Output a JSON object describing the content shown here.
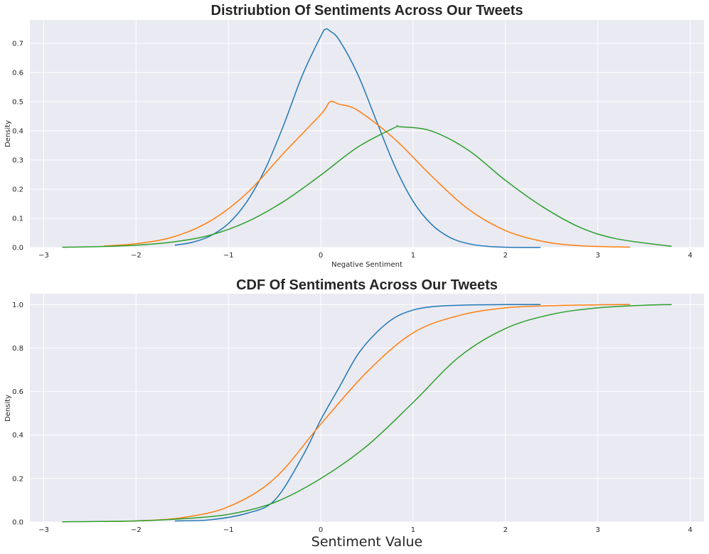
{
  "chart_data": [
    {
      "type": "line",
      "title": "Distriubtion Of Sentiments Across Our Tweets",
      "xlabel": "Negative Sentiment",
      "ylabel": "Density",
      "xlim": [
        -3.15,
        4.15
      ],
      "ylim": [
        0,
        0.78
      ],
      "xticks": [
        -3,
        -2,
        -1,
        0,
        1,
        2,
        3,
        4
      ],
      "xtick_labels": [
        "−3",
        "−2",
        "−1",
        "0",
        "1",
        "2",
        "3",
        "4"
      ],
      "yticks": [
        0.0,
        0.1,
        0.2,
        0.3,
        0.4,
        0.5,
        0.6,
        0.7
      ],
      "ytick_labels": [
        "0.0",
        "0.1",
        "0.2",
        "0.3",
        "0.4",
        "0.5",
        "0.6",
        "0.7"
      ],
      "grid": true,
      "background": "#eaeaf2",
      "series": [
        {
          "color": "#1f77b4",
          "x": [
            -1.58,
            -1.4,
            -1.2,
            -1.0,
            -0.8,
            -0.6,
            -0.4,
            -0.2,
            0.0,
            0.05,
            0.1,
            0.2,
            0.4,
            0.6,
            0.8,
            1.0,
            1.2,
            1.4,
            1.6,
            1.8,
            2.0,
            2.2,
            2.38
          ],
          "y": [
            0.008,
            0.017,
            0.039,
            0.082,
            0.157,
            0.27,
            0.421,
            0.59,
            0.724,
            0.748,
            0.742,
            0.711,
            0.594,
            0.436,
            0.28,
            0.158,
            0.079,
            0.034,
            0.013,
            0.004,
            0.001,
            0.0,
            0.0
          ]
        },
        {
          "color": "#ff7f0e",
          "x": [
            -2.35,
            -2.0,
            -1.6,
            -1.2,
            -0.8,
            -0.4,
            0.0,
            0.1,
            0.2,
            0.4,
            0.8,
            1.2,
            1.6,
            2.0,
            2.4,
            2.8,
            3.35
          ],
          "y": [
            0.005,
            0.013,
            0.036,
            0.09,
            0.186,
            0.324,
            0.456,
            0.499,
            0.491,
            0.47,
            0.372,
            0.245,
            0.131,
            0.058,
            0.021,
            0.006,
            0.001
          ]
        },
        {
          "color": "#2ca02c",
          "x": [
            -2.8,
            -2.4,
            -2.0,
            -1.6,
            -1.2,
            -0.8,
            -0.4,
            0.0,
            0.4,
            0.8,
            0.85,
            1.2,
            1.6,
            2.0,
            2.4,
            2.8,
            3.2,
            3.8
          ],
          "y": [
            0.001,
            0.003,
            0.008,
            0.019,
            0.042,
            0.088,
            0.158,
            0.248,
            0.344,
            0.411,
            0.414,
            0.399,
            0.333,
            0.23,
            0.14,
            0.07,
            0.03,
            0.004
          ]
        }
      ]
    },
    {
      "type": "line",
      "title": "CDF Of Sentiments Across Our Tweets",
      "xlabel": "Sentiment Value",
      "ylabel": "Density",
      "xlim": [
        -3.15,
        4.15
      ],
      "ylim": [
        0,
        1.05
      ],
      "xticks": [
        -3,
        -2,
        -1,
        0,
        1,
        2,
        3,
        4
      ],
      "xtick_labels": [
        "−3",
        "−2",
        "−1",
        "0",
        "1",
        "2",
        "3",
        "4"
      ],
      "yticks": [
        0.0,
        0.2,
        0.4,
        0.6,
        0.8,
        1.0
      ],
      "ytick_labels": [
        "0.0",
        "0.2",
        "0.4",
        "0.6",
        "0.8",
        "1.0"
      ],
      "grid": true,
      "background": "#eaeaf2",
      "series": [
        {
          "color": "#1f77b4",
          "x": [
            -1.58,
            -1.2,
            -0.8,
            -0.5,
            -0.2,
            0.0,
            0.2,
            0.4,
            0.6,
            0.8,
            1.0,
            1.2,
            1.5,
            2.0,
            2.38
          ],
          "y": [
            0.005,
            0.01,
            0.04,
            0.1,
            0.3,
            0.47,
            0.62,
            0.77,
            0.87,
            0.94,
            0.975,
            0.99,
            0.997,
            1.0,
            1.0
          ]
        },
        {
          "color": "#ff7f0e",
          "x": [
            -2.35,
            -2.0,
            -1.5,
            -1.0,
            -0.5,
            0.0,
            0.5,
            1.0,
            1.5,
            2.0,
            2.5,
            3.0,
            3.35
          ],
          "y": [
            0.002,
            0.005,
            0.02,
            0.07,
            0.2,
            0.45,
            0.69,
            0.87,
            0.95,
            0.985,
            0.995,
            0.999,
            1.0
          ]
        },
        {
          "color": "#2ca02c",
          "x": [
            -2.8,
            -2.0,
            -1.5,
            -1.0,
            -0.5,
            0.0,
            0.5,
            1.0,
            1.5,
            2.0,
            2.5,
            3.0,
            3.5,
            3.8
          ],
          "y": [
            0.001,
            0.005,
            0.015,
            0.035,
            0.09,
            0.2,
            0.35,
            0.55,
            0.76,
            0.89,
            0.955,
            0.985,
            0.997,
            1.0
          ]
        }
      ]
    }
  ]
}
